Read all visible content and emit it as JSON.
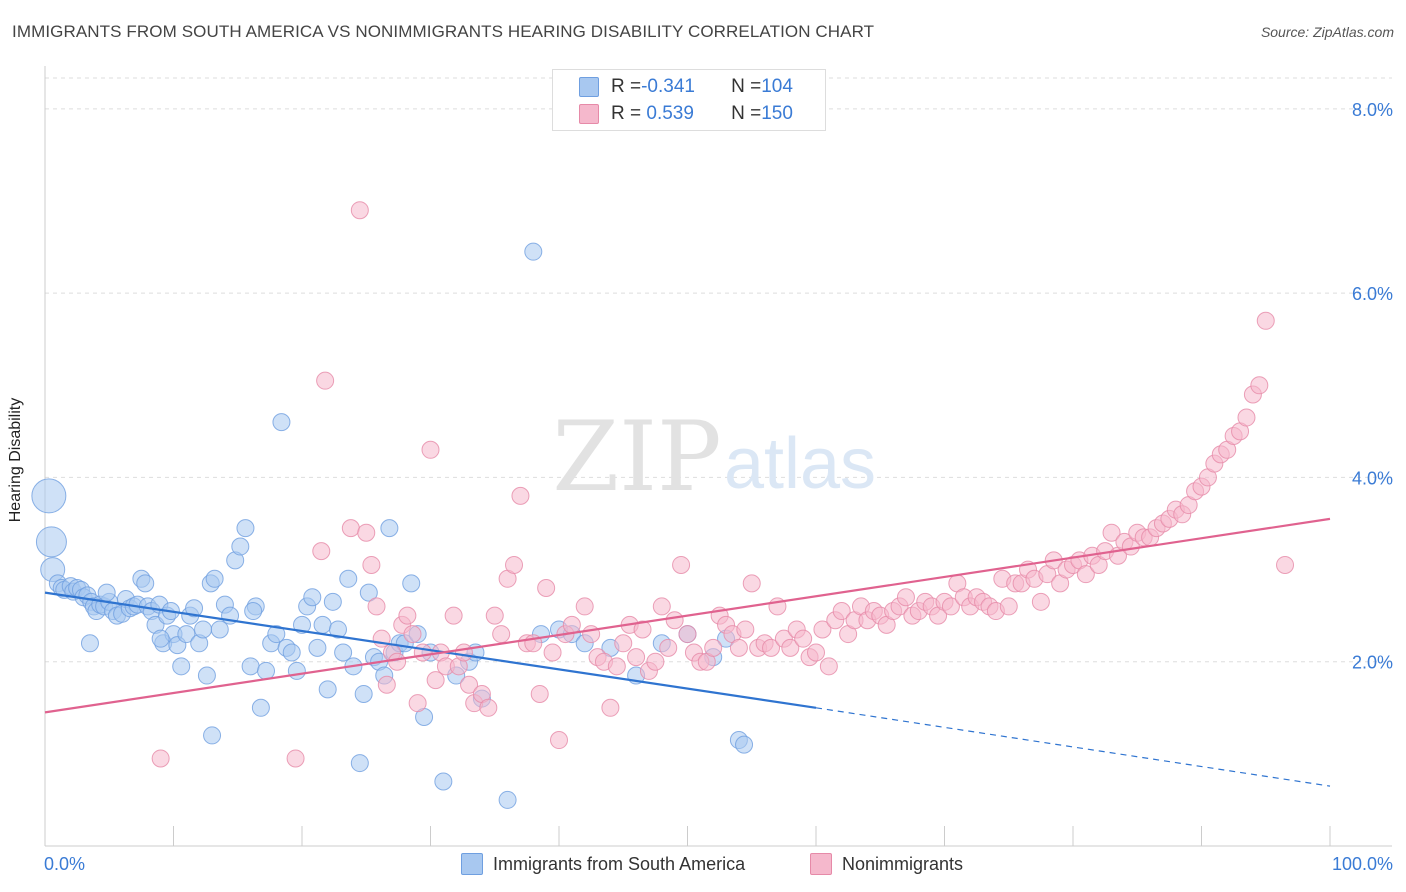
{
  "title": "IMMIGRANTS FROM SOUTH AMERICA VS NONIMMIGRANTS HEARING DISABILITY CORRELATION CHART",
  "source": "Source: ZipAtlas.com",
  "watermark": {
    "zip": "ZIP",
    "atlas": "atlas"
  },
  "colors": {
    "blue_fill": "#a8c8f0",
    "blue_stroke": "#6f9fe0",
    "blue_line": "#2f74d0",
    "pink_fill": "#f5b8cc",
    "pink_stroke": "#e68aa8",
    "pink_line": "#e0628f",
    "grid": "#dddddd",
    "tick_label": "#3a7bd5"
  },
  "legend": {
    "rows": [
      {
        "r_label": "R = ",
        "r_value": "-0.341",
        "n_label": "N = ",
        "n_value": "104"
      },
      {
        "r_label": "R = ",
        "r_value": " 0.539",
        "n_label": "N = ",
        "n_value": "150"
      }
    ]
  },
  "chart_data": {
    "type": "scatter",
    "title": "IMMIGRANTS FROM SOUTH AMERICA VS NONIMMIGRANTS HEARING DISABILITY CORRELATION CHART",
    "xlabel": "",
    "ylabel": "Hearing Disability",
    "xlim": [
      0,
      100
    ],
    "ylim": [
      0,
      8.4
    ],
    "x_tick_labels": [
      "0.0%",
      "100.0%"
    ],
    "y_ticks": [
      2,
      4,
      6,
      8
    ],
    "y_tick_labels": [
      "2.0%",
      "4.0%",
      "6.0%",
      "8.0%"
    ],
    "grid": true,
    "legend_position": "top-center",
    "series": [
      {
        "name": "Immigrants from South America",
        "color": "#a8c8f0",
        "trend": {
          "x": [
            0,
            60
          ],
          "y": [
            2.75,
            1.5
          ],
          "dashed_extension": {
            "x": [
              60,
              100
            ],
            "y": [
              1.5,
              0.65
            ]
          }
        },
        "points": [
          [
            0.3,
            3.8
          ],
          [
            0.5,
            3.3
          ],
          [
            0.6,
            3.0
          ],
          [
            1.0,
            2.85
          ],
          [
            1.3,
            2.8
          ],
          [
            1.5,
            2.78
          ],
          [
            2.0,
            2.82
          ],
          [
            2.2,
            2.76
          ],
          [
            2.5,
            2.8
          ],
          [
            2.8,
            2.78
          ],
          [
            3.0,
            2.7
          ],
          [
            3.3,
            2.72
          ],
          [
            3.6,
            2.65
          ],
          [
            3.8,
            2.6
          ],
          [
            4.0,
            2.55
          ],
          [
            4.3,
            2.62
          ],
          [
            4.6,
            2.6
          ],
          [
            5.0,
            2.65
          ],
          [
            5.3,
            2.55
          ],
          [
            5.6,
            2.5
          ],
          [
            6.0,
            2.52
          ],
          [
            6.3,
            2.68
          ],
          [
            6.6,
            2.58
          ],
          [
            6.9,
            2.6
          ],
          [
            7.2,
            2.62
          ],
          [
            7.5,
            2.9
          ],
          [
            7.8,
            2.85
          ],
          [
            8.0,
            2.6
          ],
          [
            8.3,
            2.55
          ],
          [
            8.6,
            2.4
          ],
          [
            8.9,
            2.62
          ],
          [
            9.2,
            2.2
          ],
          [
            9.5,
            2.5
          ],
          [
            9.8,
            2.55
          ],
          [
            10.0,
            2.3
          ],
          [
            10.3,
            2.18
          ],
          [
            10.6,
            1.95
          ],
          [
            11.0,
            2.3
          ],
          [
            11.3,
            2.5
          ],
          [
            11.6,
            2.58
          ],
          [
            12.0,
            2.2
          ],
          [
            12.3,
            2.35
          ],
          [
            12.6,
            1.85
          ],
          [
            12.9,
            2.85
          ],
          [
            13.2,
            2.9
          ],
          [
            13.6,
            2.35
          ],
          [
            14.0,
            2.62
          ],
          [
            14.4,
            2.5
          ],
          [
            14.8,
            3.1
          ],
          [
            15.2,
            3.25
          ],
          [
            15.6,
            3.45
          ],
          [
            16.0,
            1.95
          ],
          [
            16.4,
            2.6
          ],
          [
            16.8,
            1.5
          ],
          [
            17.2,
            1.9
          ],
          [
            17.6,
            2.2
          ],
          [
            18.0,
            2.3
          ],
          [
            18.4,
            4.6
          ],
          [
            18.8,
            2.15
          ],
          [
            19.2,
            2.1
          ],
          [
            19.6,
            1.9
          ],
          [
            20.0,
            2.4
          ],
          [
            20.4,
            2.6
          ],
          [
            20.8,
            2.7
          ],
          [
            21.2,
            2.15
          ],
          [
            21.6,
            2.4
          ],
          [
            22.0,
            1.7
          ],
          [
            22.4,
            2.65
          ],
          [
            22.8,
            2.35
          ],
          [
            23.2,
            2.1
          ],
          [
            23.6,
            2.9
          ],
          [
            24.0,
            1.95
          ],
          [
            24.5,
            0.9
          ],
          [
            24.8,
            1.65
          ],
          [
            25.2,
            2.75
          ],
          [
            25.6,
            2.05
          ],
          [
            26.0,
            2.0
          ],
          [
            26.4,
            1.85
          ],
          [
            26.8,
            3.45
          ],
          [
            27.2,
            2.1
          ],
          [
            27.6,
            2.2
          ],
          [
            28.0,
            2.2
          ],
          [
            28.5,
            2.85
          ],
          [
            29.0,
            2.3
          ],
          [
            29.5,
            1.4
          ],
          [
            30.0,
            2.1
          ],
          [
            31.0,
            0.7
          ],
          [
            32.0,
            1.85
          ],
          [
            33.0,
            2.0
          ],
          [
            33.5,
            2.1
          ],
          [
            34.0,
            1.6
          ],
          [
            36.0,
            0.5
          ],
          [
            38.0,
            6.45
          ],
          [
            38.6,
            2.3
          ],
          [
            40.0,
            2.35
          ],
          [
            41.0,
            2.3
          ],
          [
            42.0,
            2.2
          ],
          [
            44.0,
            2.15
          ],
          [
            46.0,
            1.85
          ],
          [
            48.0,
            2.2
          ],
          [
            50.0,
            2.3
          ],
          [
            52.0,
            2.05
          ],
          [
            53.0,
            2.25
          ],
          [
            54.0,
            1.15
          ],
          [
            54.4,
            1.1
          ],
          [
            3.5,
            2.2
          ],
          [
            4.8,
            2.75
          ],
          [
            9.0,
            2.25
          ],
          [
            13.0,
            1.2
          ],
          [
            16.2,
            2.55
          ]
        ]
      },
      {
        "name": "Nonimmigrants",
        "color": "#f5b8cc",
        "trend": {
          "x": [
            0,
            100
          ],
          "y": [
            1.45,
            3.55
          ]
        },
        "points": [
          [
            9.0,
            0.95
          ],
          [
            19.5,
            0.95
          ],
          [
            21.5,
            3.2
          ],
          [
            21.8,
            5.05
          ],
          [
            23.8,
            3.45
          ],
          [
            24.5,
            6.9
          ],
          [
            25.0,
            3.4
          ],
          [
            25.4,
            3.05
          ],
          [
            25.8,
            2.6
          ],
          [
            26.2,
            2.25
          ],
          [
            26.6,
            1.75
          ],
          [
            27.0,
            2.1
          ],
          [
            27.4,
            2.0
          ],
          [
            27.8,
            2.4
          ],
          [
            28.2,
            2.5
          ],
          [
            28.6,
            2.3
          ],
          [
            29.0,
            1.55
          ],
          [
            29.4,
            2.1
          ],
          [
            30.0,
            4.3
          ],
          [
            30.4,
            1.8
          ],
          [
            30.8,
            2.1
          ],
          [
            31.2,
            1.95
          ],
          [
            31.8,
            2.5
          ],
          [
            32.2,
            1.95
          ],
          [
            32.6,
            2.1
          ],
          [
            33.0,
            1.75
          ],
          [
            33.4,
            1.55
          ],
          [
            34.0,
            1.65
          ],
          [
            34.5,
            1.5
          ],
          [
            35.0,
            2.5
          ],
          [
            35.5,
            2.3
          ],
          [
            36.0,
            2.9
          ],
          [
            36.5,
            3.05
          ],
          [
            37.0,
            3.8
          ],
          [
            37.5,
            2.2
          ],
          [
            38.0,
            2.2
          ],
          [
            38.5,
            1.65
          ],
          [
            39.0,
            2.8
          ],
          [
            39.5,
            2.1
          ],
          [
            40.0,
            1.15
          ],
          [
            40.5,
            2.3
          ],
          [
            41.0,
            2.4
          ],
          [
            42.0,
            2.6
          ],
          [
            42.5,
            2.3
          ],
          [
            43.0,
            2.05
          ],
          [
            43.5,
            2.0
          ],
          [
            44.0,
            1.5
          ],
          [
            44.5,
            1.95
          ],
          [
            45.0,
            2.2
          ],
          [
            45.5,
            2.4
          ],
          [
            46.0,
            2.05
          ],
          [
            46.5,
            2.35
          ],
          [
            47.0,
            1.9
          ],
          [
            47.5,
            2.0
          ],
          [
            48.0,
            2.6
          ],
          [
            48.5,
            2.15
          ],
          [
            49.0,
            2.45
          ],
          [
            49.5,
            3.05
          ],
          [
            50.0,
            2.3
          ],
          [
            50.5,
            2.1
          ],
          [
            51.0,
            2.0
          ],
          [
            51.5,
            2.0
          ],
          [
            52.0,
            2.15
          ],
          [
            52.5,
            2.5
          ],
          [
            53.0,
            2.4
          ],
          [
            53.5,
            2.3
          ],
          [
            54.0,
            2.15
          ],
          [
            54.5,
            2.35
          ],
          [
            55.0,
            2.85
          ],
          [
            55.5,
            2.15
          ],
          [
            56.0,
            2.2
          ],
          [
            56.5,
            2.15
          ],
          [
            57.0,
            2.6
          ],
          [
            57.5,
            2.25
          ],
          [
            58.0,
            2.15
          ],
          [
            58.5,
            2.35
          ],
          [
            59.0,
            2.25
          ],
          [
            59.5,
            2.05
          ],
          [
            60.0,
            2.1
          ],
          [
            60.5,
            2.35
          ],
          [
            61.0,
            1.95
          ],
          [
            61.5,
            2.45
          ],
          [
            62.0,
            2.55
          ],
          [
            62.5,
            2.3
          ],
          [
            63.0,
            2.45
          ],
          [
            63.5,
            2.6
          ],
          [
            64.0,
            2.45
          ],
          [
            64.5,
            2.55
          ],
          [
            65.0,
            2.5
          ],
          [
            65.5,
            2.4
          ],
          [
            66.0,
            2.55
          ],
          [
            66.5,
            2.6
          ],
          [
            67.0,
            2.7
          ],
          [
            67.5,
            2.5
          ],
          [
            68.0,
            2.55
          ],
          [
            68.5,
            2.65
          ],
          [
            69.0,
            2.6
          ],
          [
            69.5,
            2.5
          ],
          [
            70.0,
            2.65
          ],
          [
            70.5,
            2.6
          ],
          [
            71.0,
            2.85
          ],
          [
            71.5,
            2.7
          ],
          [
            72.0,
            2.6
          ],
          [
            72.5,
            2.7
          ],
          [
            73.0,
            2.65
          ],
          [
            73.5,
            2.6
          ],
          [
            74.0,
            2.55
          ],
          [
            74.5,
            2.9
          ],
          [
            75.0,
            2.6
          ],
          [
            75.5,
            2.85
          ],
          [
            76.0,
            2.85
          ],
          [
            76.5,
            3.0
          ],
          [
            77.0,
            2.9
          ],
          [
            77.5,
            2.65
          ],
          [
            78.0,
            2.95
          ],
          [
            78.5,
            3.1
          ],
          [
            79.0,
            2.85
          ],
          [
            79.5,
            3.0
          ],
          [
            80.0,
            3.05
          ],
          [
            80.5,
            3.1
          ],
          [
            81.0,
            2.95
          ],
          [
            81.5,
            3.15
          ],
          [
            82.0,
            3.05
          ],
          [
            82.5,
            3.2
          ],
          [
            83.0,
            3.4
          ],
          [
            83.5,
            3.15
          ],
          [
            84.0,
            3.3
          ],
          [
            84.5,
            3.25
          ],
          [
            85.0,
            3.4
          ],
          [
            85.5,
            3.35
          ],
          [
            86.0,
            3.35
          ],
          [
            86.5,
            3.45
          ],
          [
            87.0,
            3.5
          ],
          [
            87.5,
            3.55
          ],
          [
            88.0,
            3.65
          ],
          [
            88.5,
            3.6
          ],
          [
            89.0,
            3.7
          ],
          [
            89.5,
            3.85
          ],
          [
            90.0,
            3.9
          ],
          [
            90.5,
            4.0
          ],
          [
            91.0,
            4.15
          ],
          [
            91.5,
            4.25
          ],
          [
            92.0,
            4.3
          ],
          [
            92.5,
            4.45
          ],
          [
            93.0,
            4.5
          ],
          [
            93.5,
            4.65
          ],
          [
            94.0,
            4.9
          ],
          [
            94.5,
            5.0
          ],
          [
            95.0,
            5.7
          ],
          [
            96.5,
            3.05
          ]
        ]
      }
    ]
  },
  "bottom_legend": [
    {
      "label": "Immigrants from South America"
    },
    {
      "label": "Nonimmigrants"
    }
  ]
}
